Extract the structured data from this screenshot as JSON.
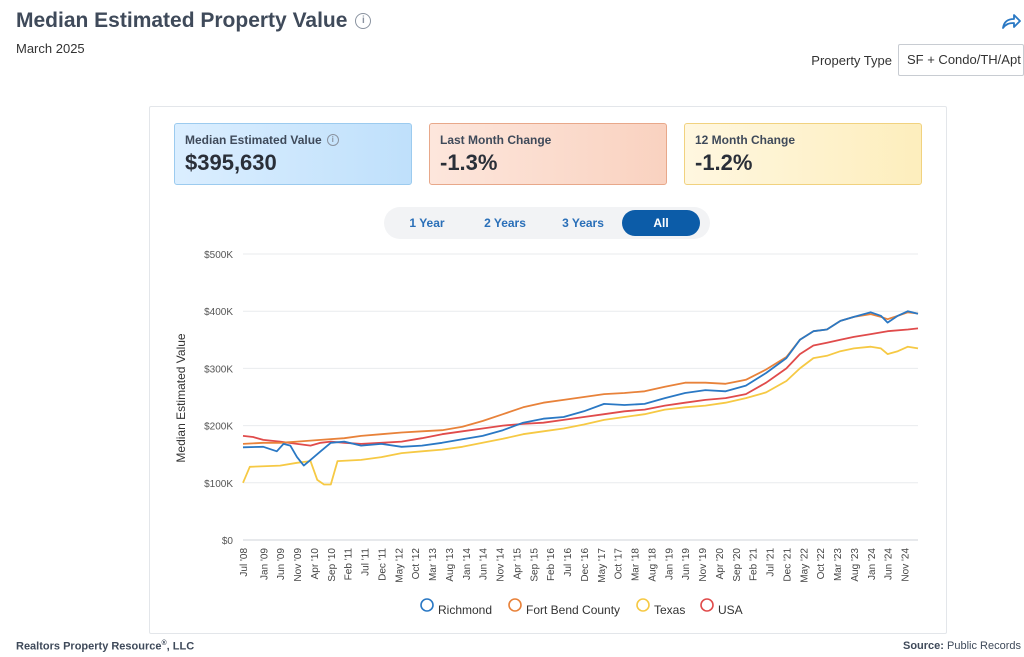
{
  "header": {
    "title": "Median Estimated Property Value",
    "subtitle": "March 2025",
    "info_icon": "info-icon",
    "share_icon": "share-arrow-icon"
  },
  "property_type": {
    "label": "Property Type",
    "value": "SF + Condo/TH/Apt"
  },
  "cards": [
    {
      "label": "Median Estimated Value",
      "value": "$395,630",
      "has_info": true
    },
    {
      "label": "Last Month Change",
      "value": "-1.3%"
    },
    {
      "label": "12 Month Change",
      "value": "-1.2%"
    }
  ],
  "range_tabs": [
    {
      "label": "1 Year",
      "active": false
    },
    {
      "label": "2 Years",
      "active": false
    },
    {
      "label": "3 Years",
      "active": false
    },
    {
      "label": "All",
      "active": true
    }
  ],
  "colors": {
    "richmond": "#2a78c4",
    "fort_bend": "#e8823a",
    "texas": "#f6c944",
    "usa": "#e04b4b",
    "grid": "#e9ebee",
    "text": "#333333"
  },
  "chart_data": {
    "type": "line",
    "title": "",
    "ylabel": "Median Estimated Value",
    "xlabel": "",
    "ylim": [
      0,
      500000
    ],
    "y_ticks": [
      0,
      100000,
      200000,
      300000,
      400000,
      500000
    ],
    "y_tick_labels": [
      "$0",
      "$100K",
      "$200K",
      "$300K",
      "$400K",
      "$500K"
    ],
    "x_range": [
      "2008-07",
      "2025-03"
    ],
    "x_tick_labels": [
      "Jul '08",
      "Jan '09",
      "Jun '09",
      "Nov '09",
      "Apr '10",
      "Sep '10",
      "Feb '11",
      "Jul '11",
      "Dec '11",
      "May '12",
      "Oct '12",
      "Mar '13",
      "Aug '13",
      "Jan '14",
      "Jun '14",
      "Nov '14",
      "Apr '15",
      "Sep '15",
      "Feb '16",
      "Jul '16",
      "Dec '16",
      "May '17",
      "Oct '17",
      "Mar '18",
      "Aug '18",
      "Jan '19",
      "Jun '19",
      "Nov '19",
      "Apr '20",
      "Sep '20",
      "Feb '21",
      "Jul '21",
      "Dec '21",
      "May '22",
      "Oct '22",
      "Mar '23",
      "Aug '23",
      "Jan '24",
      "Jun '24",
      "Nov '24"
    ],
    "grid": true,
    "legend_position": "bottom",
    "series": [
      {
        "name": "Richmond",
        "color": "#2a78c4",
        "points": [
          [
            "2008-07",
            162000
          ],
          [
            "2009-01",
            163000
          ],
          [
            "2009-05",
            155000
          ],
          [
            "2009-07",
            168000
          ],
          [
            "2009-09",
            165000
          ],
          [
            "2009-11",
            145000
          ],
          [
            "2010-01",
            130000
          ],
          [
            "2010-03",
            140000
          ],
          [
            "2010-06",
            155000
          ],
          [
            "2010-09",
            170000
          ],
          [
            "2011-01",
            172000
          ],
          [
            "2011-06",
            165000
          ],
          [
            "2011-12",
            168000
          ],
          [
            "2012-06",
            163000
          ],
          [
            "2012-12",
            165000
          ],
          [
            "2013-06",
            170000
          ],
          [
            "2013-12",
            176000
          ],
          [
            "2014-06",
            182000
          ],
          [
            "2014-12",
            192000
          ],
          [
            "2015-06",
            205000
          ],
          [
            "2015-12",
            212000
          ],
          [
            "2016-06",
            215000
          ],
          [
            "2016-12",
            225000
          ],
          [
            "2017-06",
            238000
          ],
          [
            "2017-12",
            236000
          ],
          [
            "2018-06",
            238000
          ],
          [
            "2018-12",
            248000
          ],
          [
            "2019-06",
            257000
          ],
          [
            "2019-12",
            262000
          ],
          [
            "2020-06",
            260000
          ],
          [
            "2020-12",
            270000
          ],
          [
            "2021-06",
            292000
          ],
          [
            "2021-12",
            318000
          ],
          [
            "2022-04",
            350000
          ],
          [
            "2022-08",
            365000
          ],
          [
            "2022-12",
            368000
          ],
          [
            "2023-04",
            383000
          ],
          [
            "2023-08",
            390000
          ],
          [
            "2024-01",
            398000
          ],
          [
            "2024-04",
            392000
          ],
          [
            "2024-06",
            380000
          ],
          [
            "2024-09",
            392000
          ],
          [
            "2024-12",
            400000
          ],
          [
            "2025-03",
            395630
          ]
        ]
      },
      {
        "name": "Fort Bend County",
        "color": "#e8823a",
        "points": [
          [
            "2008-07",
            168000
          ],
          [
            "2009-01",
            170000
          ],
          [
            "2009-06",
            170000
          ],
          [
            "2009-11",
            172000
          ],
          [
            "2010-06",
            175000
          ],
          [
            "2011-01",
            178000
          ],
          [
            "2011-06",
            182000
          ],
          [
            "2011-12",
            185000
          ],
          [
            "2012-06",
            188000
          ],
          [
            "2012-12",
            190000
          ],
          [
            "2013-06",
            192000
          ],
          [
            "2013-12",
            198000
          ],
          [
            "2014-06",
            208000
          ],
          [
            "2014-12",
            220000
          ],
          [
            "2015-06",
            232000
          ],
          [
            "2015-12",
            240000
          ],
          [
            "2016-06",
            245000
          ],
          [
            "2016-12",
            250000
          ],
          [
            "2017-06",
            255000
          ],
          [
            "2017-12",
            257000
          ],
          [
            "2018-06",
            260000
          ],
          [
            "2018-12",
            268000
          ],
          [
            "2019-06",
            275000
          ],
          [
            "2019-12",
            275000
          ],
          [
            "2020-06",
            273000
          ],
          [
            "2020-12",
            280000
          ],
          [
            "2021-06",
            298000
          ],
          [
            "2021-12",
            320000
          ],
          [
            "2022-04",
            350000
          ],
          [
            "2022-08",
            365000
          ],
          [
            "2022-12",
            368000
          ],
          [
            "2023-04",
            383000
          ],
          [
            "2023-08",
            390000
          ],
          [
            "2024-01",
            395000
          ],
          [
            "2024-04",
            390000
          ],
          [
            "2024-06",
            386000
          ],
          [
            "2024-09",
            392000
          ],
          [
            "2024-12",
            398000
          ],
          [
            "2025-03",
            396000
          ]
        ]
      },
      {
        "name": "Texas",
        "color": "#f6c944",
        "points": [
          [
            "2008-07",
            100000
          ],
          [
            "2008-09",
            128000
          ],
          [
            "2009-06",
            130000
          ],
          [
            "2009-11",
            135000
          ],
          [
            "2010-03",
            138000
          ],
          [
            "2010-05",
            105000
          ],
          [
            "2010-07",
            97000
          ],
          [
            "2010-09",
            97000
          ],
          [
            "2010-11",
            138000
          ],
          [
            "2011-06",
            140000
          ],
          [
            "2011-12",
            145000
          ],
          [
            "2012-06",
            152000
          ],
          [
            "2012-12",
            155000
          ],
          [
            "2013-06",
            158000
          ],
          [
            "2013-12",
            163000
          ],
          [
            "2014-06",
            170000
          ],
          [
            "2014-12",
            177000
          ],
          [
            "2015-06",
            185000
          ],
          [
            "2015-12",
            190000
          ],
          [
            "2016-06",
            195000
          ],
          [
            "2016-12",
            202000
          ],
          [
            "2017-06",
            210000
          ],
          [
            "2017-12",
            215000
          ],
          [
            "2018-06",
            220000
          ],
          [
            "2018-12",
            228000
          ],
          [
            "2019-06",
            232000
          ],
          [
            "2019-12",
            235000
          ],
          [
            "2020-06",
            240000
          ],
          [
            "2020-12",
            248000
          ],
          [
            "2021-06",
            258000
          ],
          [
            "2021-12",
            278000
          ],
          [
            "2022-04",
            300000
          ],
          [
            "2022-08",
            318000
          ],
          [
            "2022-12",
            322000
          ],
          [
            "2023-04",
            330000
          ],
          [
            "2023-08",
            335000
          ],
          [
            "2024-01",
            338000
          ],
          [
            "2024-04",
            335000
          ],
          [
            "2024-06",
            325000
          ],
          [
            "2024-09",
            330000
          ],
          [
            "2024-12",
            338000
          ],
          [
            "2025-03",
            335000
          ]
        ]
      },
      {
        "name": "USA",
        "color": "#e04b4b",
        "points": [
          [
            "2008-07",
            182000
          ],
          [
            "2008-10",
            180000
          ],
          [
            "2009-01",
            175000
          ],
          [
            "2009-06",
            172000
          ],
          [
            "2009-11",
            168000
          ],
          [
            "2010-03",
            165000
          ],
          [
            "2010-06",
            170000
          ],
          [
            "2010-09",
            172000
          ],
          [
            "2011-01",
            170000
          ],
          [
            "2011-06",
            168000
          ],
          [
            "2011-12",
            170000
          ],
          [
            "2012-06",
            172000
          ],
          [
            "2012-12",
            178000
          ],
          [
            "2013-06",
            185000
          ],
          [
            "2013-12",
            190000
          ],
          [
            "2014-06",
            195000
          ],
          [
            "2014-12",
            200000
          ],
          [
            "2015-06",
            203000
          ],
          [
            "2015-12",
            205000
          ],
          [
            "2016-06",
            210000
          ],
          [
            "2016-12",
            215000
          ],
          [
            "2017-06",
            220000
          ],
          [
            "2017-12",
            225000
          ],
          [
            "2018-06",
            228000
          ],
          [
            "2018-12",
            235000
          ],
          [
            "2019-06",
            240000
          ],
          [
            "2019-12",
            245000
          ],
          [
            "2020-06",
            248000
          ],
          [
            "2020-12",
            255000
          ],
          [
            "2021-06",
            275000
          ],
          [
            "2021-12",
            300000
          ],
          [
            "2022-04",
            325000
          ],
          [
            "2022-08",
            340000
          ],
          [
            "2022-12",
            345000
          ],
          [
            "2023-04",
            350000
          ],
          [
            "2023-08",
            355000
          ],
          [
            "2024-01",
            360000
          ],
          [
            "2024-06",
            365000
          ],
          [
            "2024-12",
            368000
          ],
          [
            "2025-03",
            370000
          ]
        ]
      }
    ]
  },
  "footer": {
    "left": "Realtors Property Resource",
    "left_mark": "®",
    "left_suffix": ", LLC",
    "right_label": "Source:",
    "right_value": "Public Records"
  }
}
